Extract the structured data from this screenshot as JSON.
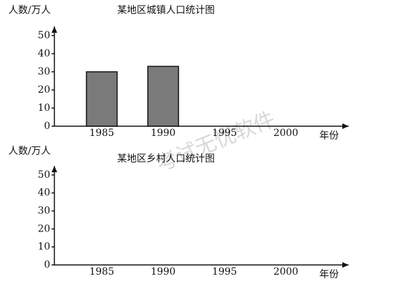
{
  "chart_data": [
    {
      "type": "bar",
      "title": "某地区城镇人口统计图",
      "y_label": "人数/万人",
      "x_label": "年份",
      "categories": [
        "1985",
        "1990",
        "1995",
        "2000"
      ],
      "values": [
        30,
        33,
        null,
        null
      ],
      "color": "#7a7a7a",
      "ylim": [
        0,
        55
      ],
      "yticks": [
        0,
        10,
        20,
        30,
        40,
        50
      ]
    },
    {
      "type": "bar",
      "title": "某地区乡村人口统计图",
      "y_label": "人数/万人",
      "x_label": "年份",
      "categories": [
        "1985",
        "1990",
        "1995",
        "2000"
      ],
      "values": [
        null,
        null,
        null,
        null
      ],
      "color": "#7a7a7a",
      "ylim": [
        0,
        55
      ],
      "yticks": [
        0,
        10,
        20,
        30,
        40,
        50
      ]
    }
  ],
  "watermark": "考试无忧软件"
}
